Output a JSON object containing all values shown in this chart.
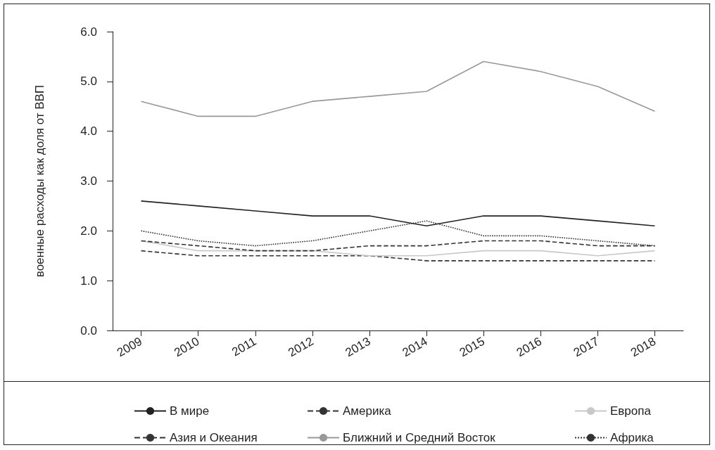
{
  "chart_data": {
    "type": "line",
    "ylabel": "военные расходы как доля от ВВП",
    "categories": [
      "2009",
      "2010",
      "2011",
      "2012",
      "2013",
      "2014",
      "2015",
      "2016",
      "2017",
      "2018"
    ],
    "series": [
      {
        "name": "В мире",
        "color": "#222222",
        "line_style": "solid",
        "values": [
          2.6,
          2.5,
          2.4,
          2.3,
          2.3,
          2.1,
          2.3,
          2.3,
          2.2,
          2.1
        ]
      },
      {
        "name": "Америка",
        "color": "#333333",
        "line_style": "dashed",
        "values": [
          1.6,
          1.5,
          1.5,
          1.5,
          1.5,
          1.4,
          1.4,
          1.4,
          1.4,
          1.4
        ]
      },
      {
        "name": "Европа",
        "color": "#c8c8c8",
        "line_style": "solid",
        "values": [
          1.8,
          1.6,
          1.6,
          1.6,
          1.5,
          1.5,
          1.6,
          1.6,
          1.5,
          1.6
        ]
      },
      {
        "name": "Азия и Океания",
        "color": "#333333",
        "line_style": "dashed",
        "values": [
          1.8,
          1.7,
          1.6,
          1.6,
          1.7,
          1.7,
          1.8,
          1.8,
          1.7,
          1.7
        ]
      },
      {
        "name": "Ближний и Средний Восток",
        "color": "#999999",
        "line_style": "solid",
        "values": [
          4.6,
          4.3,
          4.3,
          4.6,
          4.7,
          4.8,
          5.4,
          5.2,
          4.9,
          4.4
        ]
      },
      {
        "name": "Африка",
        "color": "#333333",
        "line_style": "dotted",
        "values": [
          2.0,
          1.8,
          1.7,
          1.8,
          2.0,
          2.2,
          1.9,
          1.9,
          1.8,
          1.7
        ]
      }
    ],
    "ylim": [
      0,
      6
    ],
    "yticks": [
      {
        "value": 0,
        "label": "0.0"
      },
      {
        "value": 1,
        "label": "1.0"
      },
      {
        "value": 2,
        "label": "2.0"
      },
      {
        "value": 3,
        "label": "3.0"
      },
      {
        "value": 4,
        "label": "4.0"
      },
      {
        "value": 5,
        "label": "5.0"
      },
      {
        "value": 6,
        "label": "6.0"
      }
    ],
    "grid": false,
    "legend": "bottom",
    "marker": "none"
  }
}
